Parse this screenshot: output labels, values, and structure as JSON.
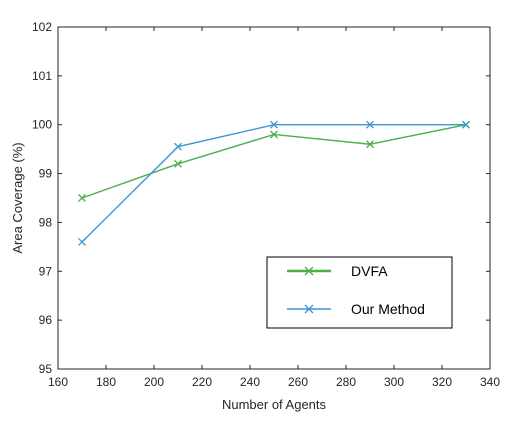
{
  "chart_data": {
    "type": "line",
    "title": "",
    "xlabel": "Number of Agents",
    "ylabel": "Area Coverage (%)",
    "xlim": [
      160,
      340
    ],
    "ylim": [
      95,
      102
    ],
    "xticks": [
      160,
      180,
      200,
      220,
      240,
      260,
      280,
      300,
      320,
      340
    ],
    "yticks": [
      95,
      96,
      97,
      98,
      99,
      100,
      101,
      102
    ],
    "grid": false,
    "legend_position": "bottom-right",
    "series": [
      {
        "name": "DVFA",
        "color": "#4daf4a",
        "marker": "x",
        "x": [
          170,
          210,
          250,
          290,
          330
        ],
        "y": [
          98.5,
          99.2,
          99.8,
          99.6,
          100.0
        ]
      },
      {
        "name": "Our Method",
        "color": "#3b97d3",
        "marker": "x",
        "x": [
          170,
          210,
          250,
          290,
          330
        ],
        "y": [
          97.6,
          99.55,
          100.0,
          100.0,
          100.0
        ]
      }
    ]
  }
}
